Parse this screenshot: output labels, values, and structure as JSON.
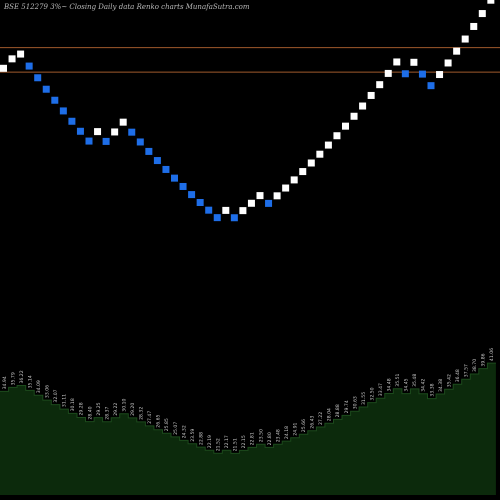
{
  "chart_data": {
    "type": "renko",
    "title": "BSE 512279 3%~  Closing Daily data  Renko  charts MunafaSutra.com",
    "colors": {
      "background": "#000000",
      "up_brick": "#ffffff",
      "down_brick": "#1e6ee8",
      "reference_line": "#a05a2c",
      "volume_fill": "#0c2a0c",
      "volume_line": "#cccccc",
      "label_text": "#cccccc"
    },
    "price_range": [
      12.5,
      40
    ],
    "reference_lines": [
      36.8,
      34.6
    ],
    "bricks": [
      {
        "price": 34.94,
        "direction": "up"
      },
      {
        "price": 35.79,
        "direction": "up"
      },
      {
        "price": 36.22,
        "direction": "up"
      },
      {
        "price": 35.14,
        "direction": "down"
      },
      {
        "price": 34.09,
        "direction": "down"
      },
      {
        "price": 33.06,
        "direction": "down"
      },
      {
        "price": 32.07,
        "direction": "down"
      },
      {
        "price": 31.11,
        "direction": "down"
      },
      {
        "price": 30.18,
        "direction": "down"
      },
      {
        "price": 29.28,
        "direction": "down"
      },
      {
        "price": 28.4,
        "direction": "down"
      },
      {
        "price": 29.25,
        "direction": "up"
      },
      {
        "price": 28.37,
        "direction": "down"
      },
      {
        "price": 29.22,
        "direction": "up"
      },
      {
        "price": 30.1,
        "direction": "up"
      },
      {
        "price": 29.2,
        "direction": "down"
      },
      {
        "price": 28.32,
        "direction": "down"
      },
      {
        "price": 27.47,
        "direction": "down"
      },
      {
        "price": 26.65,
        "direction": "down"
      },
      {
        "price": 25.85,
        "direction": "down"
      },
      {
        "price": 25.07,
        "direction": "down"
      },
      {
        "price": 24.32,
        "direction": "down"
      },
      {
        "price": 23.59,
        "direction": "down"
      },
      {
        "price": 22.88,
        "direction": "down"
      },
      {
        "price": 22.19,
        "direction": "down"
      },
      {
        "price": 21.52,
        "direction": "down"
      },
      {
        "price": 22.17,
        "direction": "up"
      },
      {
        "price": 21.51,
        "direction": "down"
      },
      {
        "price": 22.15,
        "direction": "up"
      },
      {
        "price": 22.81,
        "direction": "up"
      },
      {
        "price": 23.5,
        "direction": "up"
      },
      {
        "price": 22.8,
        "direction": "down"
      },
      {
        "price": 23.48,
        "direction": "up"
      },
      {
        "price": 24.18,
        "direction": "up"
      },
      {
        "price": 24.91,
        "direction": "up"
      },
      {
        "price": 25.66,
        "direction": "up"
      },
      {
        "price": 26.43,
        "direction": "up"
      },
      {
        "price": 27.22,
        "direction": "up"
      },
      {
        "price": 28.04,
        "direction": "up"
      },
      {
        "price": 28.88,
        "direction": "up"
      },
      {
        "price": 29.74,
        "direction": "up"
      },
      {
        "price": 30.63,
        "direction": "up"
      },
      {
        "price": 31.55,
        "direction": "up"
      },
      {
        "price": 32.5,
        "direction": "up"
      },
      {
        "price": 33.47,
        "direction": "up"
      },
      {
        "price": 34.48,
        "direction": "up"
      },
      {
        "price": 35.51,
        "direction": "up"
      },
      {
        "price": 34.45,
        "direction": "down"
      },
      {
        "price": 35.48,
        "direction": "up"
      },
      {
        "price": 34.42,
        "direction": "down"
      },
      {
        "price": 33.38,
        "direction": "down"
      },
      {
        "price": 34.38,
        "direction": "up"
      },
      {
        "price": 35.42,
        "direction": "up"
      },
      {
        "price": 36.48,
        "direction": "up"
      },
      {
        "price": 37.57,
        "direction": "up"
      },
      {
        "price": 38.7,
        "direction": "up"
      },
      {
        "price": 39.86,
        "direction": "up"
      },
      {
        "price": 41.06,
        "direction": "up"
      }
    ]
  }
}
